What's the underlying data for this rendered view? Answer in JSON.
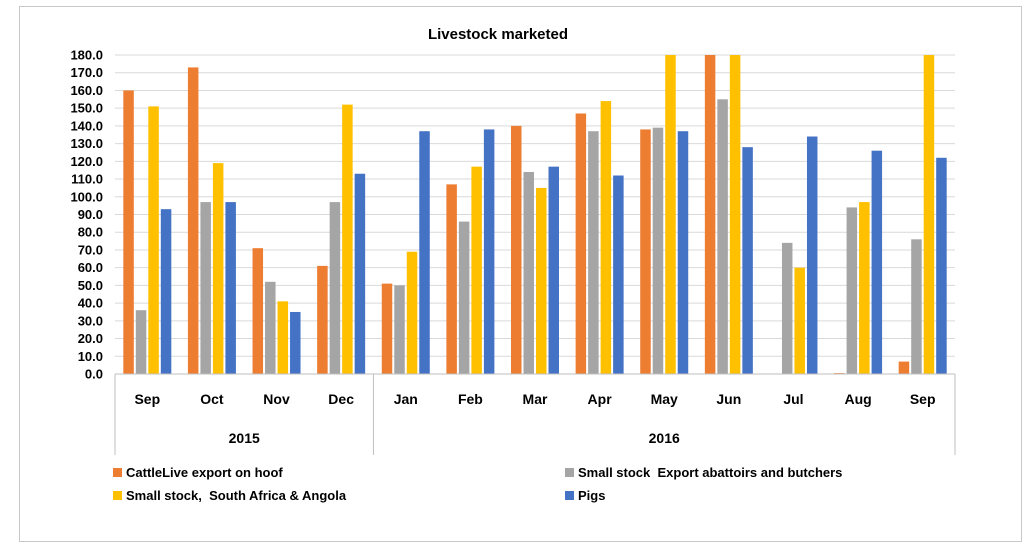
{
  "chart_data": {
    "type": "bar",
    "title": "Livestock marketed",
    "xlabel": "",
    "ylabel": "",
    "ylim": [
      0,
      180
    ],
    "y_tick_step": 10,
    "y_tick_labels": [
      "0.0",
      "10.0",
      "20.0",
      "30.0",
      "40.0",
      "50.0",
      "60.0",
      "70.0",
      "80.0",
      "90.0",
      "100.0",
      "110.0",
      "120.0",
      "130.0",
      "140.0",
      "150.0",
      "160.0",
      "170.0",
      "180.0"
    ],
    "grid": true,
    "legend_position": "bottom",
    "categories": [
      "Sep",
      "Oct",
      "Nov",
      "Dec",
      "Jan",
      "Feb",
      "Mar",
      "Apr",
      "May",
      "Jun",
      "Jul",
      "Aug",
      "Sep"
    ],
    "groups": [
      {
        "label": "2015",
        "count": 4
      },
      {
        "label": "2016",
        "count": 9
      }
    ],
    "series": [
      {
        "name": "CattleLive export on hoof",
        "color": "#ED7D31",
        "values": [
          160,
          173,
          71,
          61,
          51,
          107,
          140,
          147,
          138,
          180,
          0,
          0.5,
          7
        ]
      },
      {
        "name": "Small stock  Export abattoirs and butchers",
        "color": "#A5A5A5",
        "values": [
          36,
          97,
          52,
          97,
          50,
          86,
          114,
          137,
          139,
          155,
          74,
          94,
          76
        ]
      },
      {
        "name": "Small stock,  South Africa & Angola",
        "color": "#FFC000",
        "values": [
          151,
          119,
          41,
          152,
          69,
          117,
          105,
          154,
          180,
          180,
          60,
          97,
          180
        ]
      },
      {
        "name": "Pigs",
        "color": "#4472C4",
        "values": [
          93,
          97,
          35,
          113,
          137,
          138,
          117,
          112,
          137,
          128,
          134,
          126,
          122
        ]
      }
    ]
  }
}
